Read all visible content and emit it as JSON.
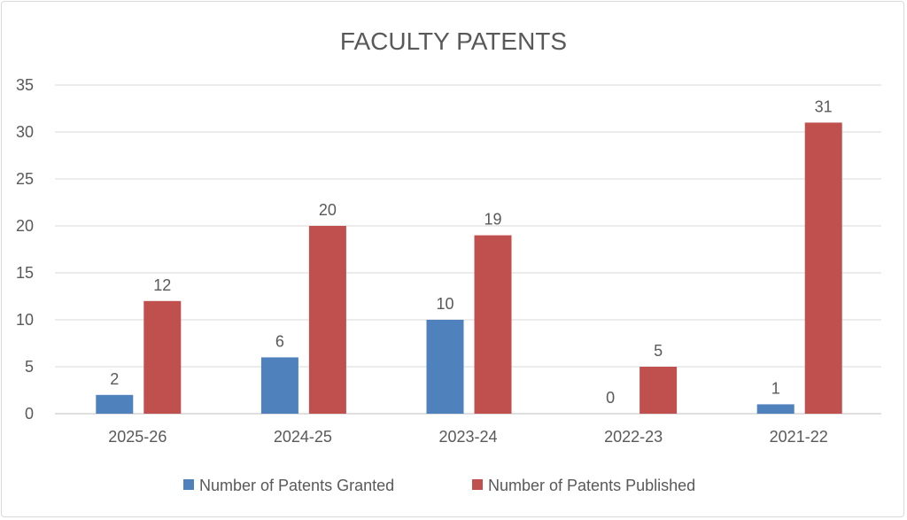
{
  "chart_data": {
    "type": "bar",
    "title": "FACULTY PATENTS",
    "xlabel": "",
    "ylabel": "",
    "categories": [
      "2025-26",
      "2024-25",
      "2023-24",
      "2022-23",
      "2021-22"
    ],
    "series": [
      {
        "name": "Number of Patents Granted",
        "values": [
          2,
          6,
          10,
          0,
          1
        ],
        "color": "#4F81BD"
      },
      {
        "name": "Number of Patents Published",
        "values": [
          12,
          20,
          19,
          5,
          31
        ],
        "color": "#C0504D"
      }
    ],
    "ylim": [
      0,
      35
    ],
    "yticks": [
      0,
      5,
      10,
      15,
      20,
      25,
      30,
      35
    ],
    "grid": true,
    "data_labels": true,
    "legend": "bottom"
  }
}
